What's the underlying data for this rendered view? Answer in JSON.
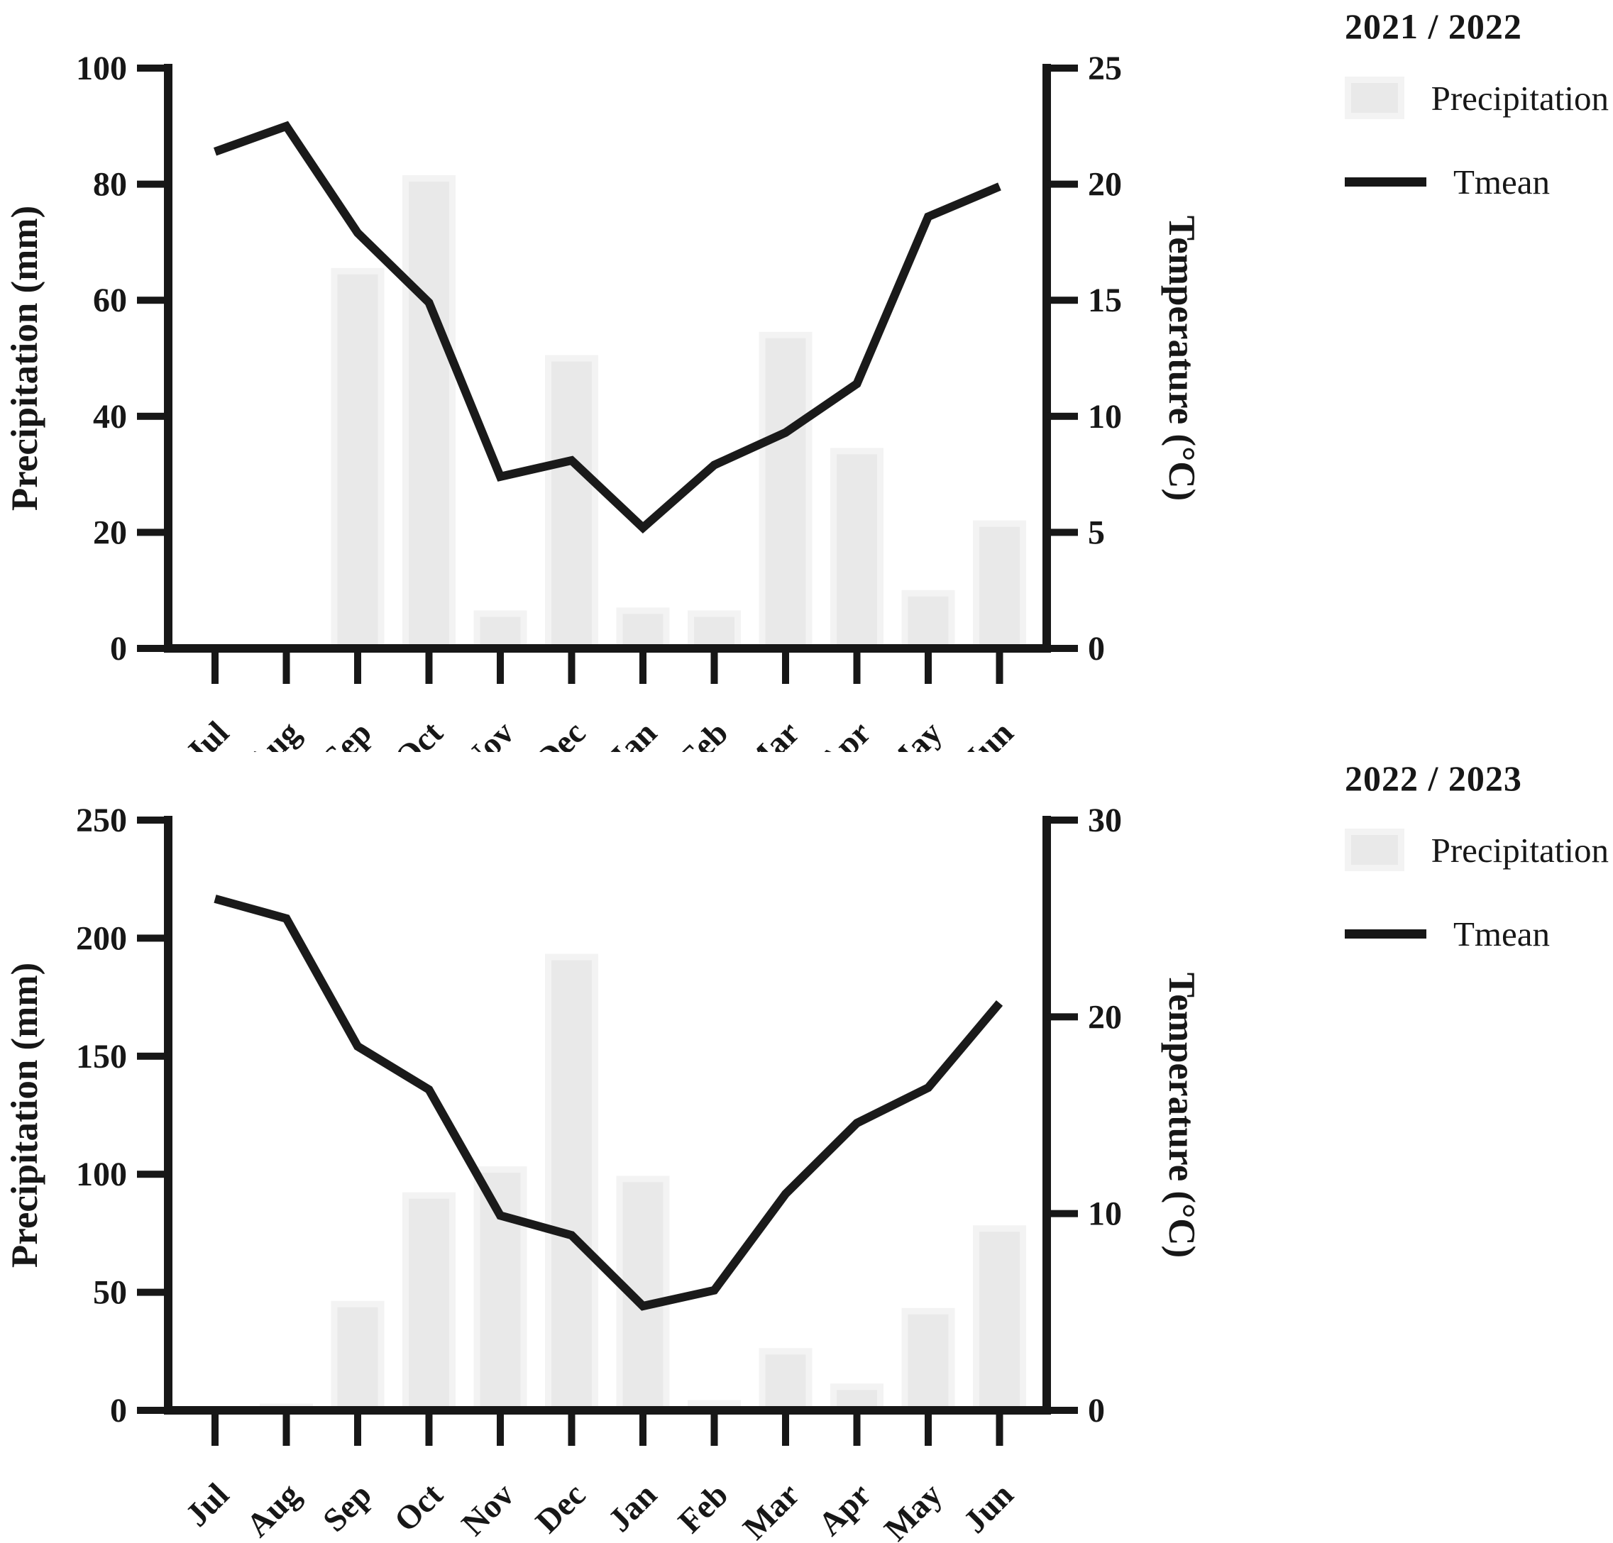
{
  "page_background": "#ffffff",
  "chart_data": [
    {
      "type": "bar+line",
      "legend_title": "2021 / 2022",
      "legend": [
        {
          "swatch": "bar-swatch",
          "label": "Precipitation"
        },
        {
          "swatch": "line-swatch",
          "label": "Tmean"
        }
      ],
      "categories": [
        "Jul",
        "Aug",
        "Sep",
        "Oct",
        "Nov",
        "Dec",
        "Jan",
        "Feb",
        "Mar",
        "Apr",
        "May",
        "Jun"
      ],
      "left_axis": {
        "title": "Precipitation (mm)",
        "min": 0,
        "max": 100,
        "ticks": [
          0,
          20,
          40,
          60,
          80,
          100
        ]
      },
      "right_axis": {
        "title": "Temperature (°C)",
        "min": 0,
        "max": 25,
        "ticks": [
          0,
          5,
          10,
          15,
          20,
          25
        ]
      },
      "series": [
        {
          "name": "Precipitation",
          "type": "bar",
          "axis": "left",
          "values": [
            0,
            0,
            65,
            81,
            6,
            50,
            6.5,
            6,
            54,
            34,
            9.5,
            21.5
          ]
        },
        {
          "name": "Tmean",
          "type": "line",
          "axis": "right",
          "values": [
            21.4,
            22.5,
            17.9,
            14.9,
            7.4,
            8.1,
            5.2,
            7.9,
            9.3,
            11.4,
            18.6,
            19.9
          ]
        }
      ],
      "grid": "off",
      "legend_position": "top-right",
      "colors": {
        "bar_fill": "#e9e9e9",
        "bar_edge": "#f3f3f3",
        "line": "#1a1a1a",
        "axis": "#171717"
      }
    },
    {
      "type": "bar+line",
      "legend_title": "2022 / 2023",
      "legend": [
        {
          "swatch": "bar-swatch",
          "label": "Precipitation"
        },
        {
          "swatch": "line-swatch",
          "label": "Tmean"
        }
      ],
      "categories": [
        "Jul",
        "Aug",
        "Sep",
        "Oct",
        "Nov",
        "Dec",
        "Jan",
        "Feb",
        "Mar",
        "Apr",
        "May",
        "Jun"
      ],
      "left_axis": {
        "title": "Precipitation (mm)",
        "min": 0,
        "max": 250,
        "ticks": [
          0,
          50,
          100,
          150,
          200,
          250
        ]
      },
      "right_axis": {
        "title": "Temperature (°C)",
        "min": 0,
        "max": 30,
        "ticks": [
          0,
          10,
          20,
          30
        ]
      },
      "series": [
        {
          "name": "Precipitation",
          "type": "bar",
          "axis": "left",
          "values": [
            0,
            1.5,
            45,
            91,
            102,
            192,
            98,
            3,
            25,
            10,
            42,
            77
          ]
        },
        {
          "name": "Tmean",
          "type": "line",
          "axis": "right",
          "values": [
            26.0,
            25.0,
            18.5,
            16.3,
            9.9,
            8.9,
            5.3,
            6.1,
            11.0,
            14.6,
            16.4,
            20.7
          ]
        }
      ],
      "grid": "off",
      "legend_position": "top-right",
      "colors": {
        "bar_fill": "#e9e9e9",
        "bar_edge": "#f3f3f3",
        "line": "#1a1a1a",
        "axis": "#171717"
      }
    }
  ]
}
